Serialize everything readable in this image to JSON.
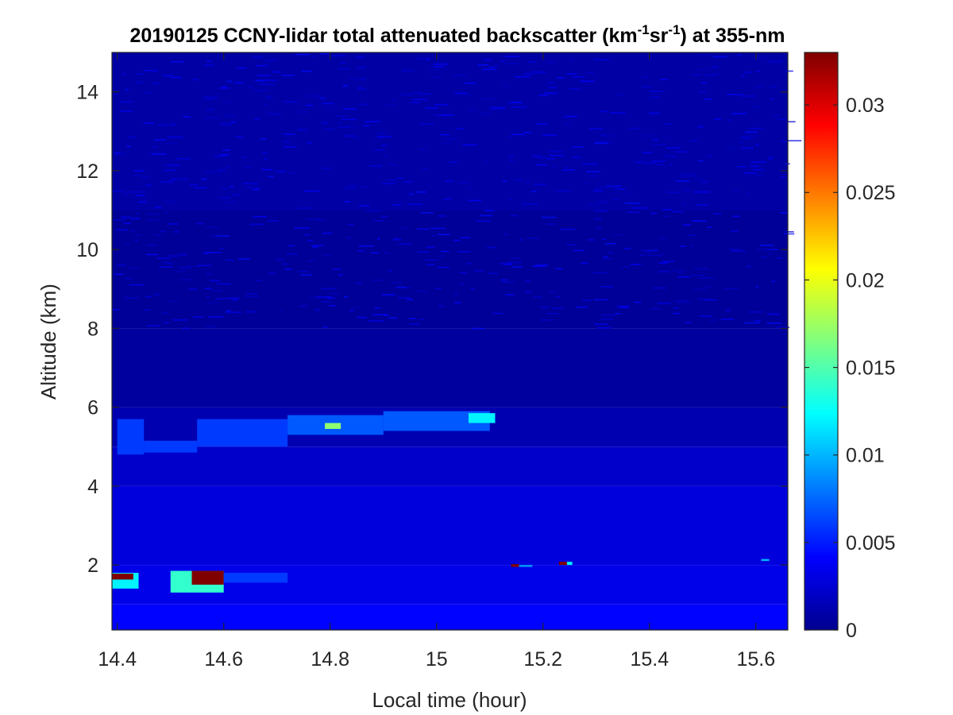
{
  "chart_data": {
    "type": "heatmap",
    "title": {
      "t1": "20190125 CCNY-lidar total attenuated backscatter (km",
      "sup1": "-1",
      "t2": "sr",
      "sup2": "-1",
      "t3": ") at 355-nm"
    },
    "xlabel": "Local time (hour)",
    "ylabel": "Altitude (km)",
    "xlim": [
      14.39,
      15.66
    ],
    "ylim": [
      0.35,
      15.0
    ],
    "x_ticks": [
      14.4,
      14.6,
      14.8,
      15,
      15.2,
      15.4,
      15.6
    ],
    "x_tick_labels": [
      "14.4",
      "14.6",
      "14.8",
      "15",
      "15.2",
      "15.4",
      "15.6"
    ],
    "y_ticks": [
      2,
      4,
      6,
      8,
      10,
      12,
      14
    ],
    "y_tick_labels": [
      "2",
      "4",
      "6",
      "8",
      "10",
      "12",
      "14"
    ],
    "colorbar": {
      "colormap": "jet",
      "clim": [
        0,
        0.033
      ],
      "ticks": [
        0,
        0.005,
        0.01,
        0.015,
        0.02,
        0.025,
        0.03
      ],
      "tick_labels": [
        "0",
        "0.005",
        "0.01",
        "0.015",
        "0.02",
        "0.025",
        "0.03"
      ]
    },
    "background": [
      {
        "alt_range": [
          0.35,
          1.0
        ],
        "value": 0.0042
      },
      {
        "alt_range": [
          1.0,
          2.0
        ],
        "value": 0.0034
      },
      {
        "alt_range": [
          2.0,
          4.0
        ],
        "value": 0.003
      },
      {
        "alt_range": [
          4.0,
          5.0
        ],
        "value": 0.0024
      },
      {
        "alt_range": [
          5.0,
          6.0
        ],
        "value": 0.0016
      },
      {
        "alt_range": [
          6.0,
          8.0
        ],
        "value": 0.001
      },
      {
        "alt_range": [
          8.0,
          11.0
        ],
        "value": 0.0008
      },
      {
        "alt_range": [
          11.0,
          15.0
        ],
        "value": 0.0012
      }
    ],
    "features": [
      {
        "name": "cirrus layer",
        "time": [
          14.4,
          14.45
        ],
        "alt": [
          4.8,
          5.7
        ],
        "value": 0.006
      },
      {
        "name": "cirrus layer",
        "time": [
          14.45,
          14.55
        ],
        "alt": [
          4.85,
          5.15
        ],
        "value": 0.006
      },
      {
        "name": "cirrus layer",
        "time": [
          14.55,
          14.72
        ],
        "alt": [
          5.0,
          5.7
        ],
        "value": 0.006
      },
      {
        "name": "cirrus layer",
        "time": [
          14.72,
          14.9
        ],
        "alt": [
          5.3,
          5.8
        ],
        "value": 0.007
      },
      {
        "name": "cirrus layer",
        "time": [
          14.9,
          15.1
        ],
        "alt": [
          5.4,
          5.9
        ],
        "value": 0.007
      },
      {
        "name": "cirrus core",
        "time": [
          15.06,
          15.11
        ],
        "alt": [
          5.6,
          5.85
        ],
        "value": 0.012
      },
      {
        "name": "cirrus core",
        "time": [
          14.79,
          14.82
        ],
        "alt": [
          5.45,
          5.6
        ],
        "value": 0.017
      },
      {
        "name": "low cloud",
        "time": [
          14.39,
          14.44
        ],
        "alt": [
          1.4,
          1.8
        ],
        "value": 0.012
      },
      {
        "name": "low cloud",
        "time": [
          14.39,
          14.43
        ],
        "alt": [
          1.63,
          1.78
        ],
        "value": 0.033
      },
      {
        "name": "low cloud",
        "time": [
          14.5,
          14.6
        ],
        "alt": [
          1.3,
          1.85
        ],
        "value": 0.014
      },
      {
        "name": "low cloud",
        "time": [
          14.54,
          14.6
        ],
        "alt": [
          1.5,
          1.85
        ],
        "value": 0.033
      },
      {
        "name": "low cloud",
        "time": [
          14.6,
          14.72
        ],
        "alt": [
          1.55,
          1.8
        ],
        "value": 0.006
      },
      {
        "name": "spike",
        "time": [
          15.14,
          15.155
        ],
        "alt": [
          1.95,
          2.02
        ],
        "value": 0.033
      },
      {
        "name": "spike",
        "time": [
          15.155,
          15.18
        ],
        "alt": [
          1.95,
          2.0
        ],
        "value": 0.009
      },
      {
        "name": "spike",
        "time": [
          15.23,
          15.245
        ],
        "alt": [
          2.0,
          2.08
        ],
        "value": 0.033
      },
      {
        "name": "spike",
        "time": [
          15.245,
          15.255
        ],
        "alt": [
          2.0,
          2.08
        ],
        "value": 0.012
      },
      {
        "name": "spike",
        "time": [
          15.61,
          15.625
        ],
        "alt": [
          2.1,
          2.15
        ],
        "value": 0.01
      }
    ]
  }
}
